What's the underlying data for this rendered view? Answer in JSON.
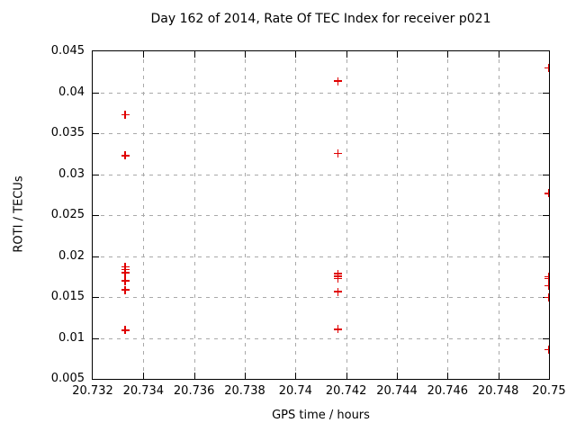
{
  "chart_data": {
    "type": "scatter",
    "title": "Day 162 of 2014, Rate Of TEC Index for receiver p021",
    "xlabel": "GPS time / hours",
    "ylabel": "ROTI / TECUs",
    "xlim": [
      20.732,
      20.75
    ],
    "ylim": [
      0.005,
      0.045
    ],
    "xticks": [
      20.732,
      20.734,
      20.736,
      20.738,
      20.74,
      20.742,
      20.744,
      20.746,
      20.748,
      20.75
    ],
    "xtick_labels": [
      "20.732",
      "20.734",
      "20.736",
      "20.738",
      "20.74",
      "20.742",
      "20.744",
      "20.746",
      "20.748",
      "20.75"
    ],
    "yticks": [
      0.005,
      0.01,
      0.015,
      0.02,
      0.025,
      0.03,
      0.035,
      0.04,
      0.045
    ],
    "ytick_labels": [
      "0.005",
      "0.01",
      "0.015",
      "0.02",
      "0.025",
      "0.03",
      "0.035",
      "0.04",
      "0.045"
    ],
    "grid": true,
    "legend": "none",
    "marker": {
      "style": "plus",
      "size": 9
    },
    "series": [
      {
        "name": "ROTI",
        "points": [
          [
            20.7333,
            0.0372
          ],
          [
            20.7333,
            0.0322
          ],
          [
            20.7333,
            0.0186
          ],
          [
            20.7333,
            0.0183
          ],
          [
            20.7333,
            0.0179
          ],
          [
            20.7333,
            0.0169
          ],
          [
            20.7333,
            0.0158
          ],
          [
            20.7333,
            0.0109
          ],
          [
            20.7417,
            0.0413
          ],
          [
            20.7417,
            0.0325
          ],
          [
            20.7417,
            0.0178
          ],
          [
            20.7417,
            0.0175
          ],
          [
            20.7417,
            0.0172
          ],
          [
            20.7417,
            0.0156
          ],
          [
            20.7417,
            0.011
          ],
          [
            20.75,
            0.0429
          ],
          [
            20.75,
            0.0276
          ],
          [
            20.75,
            0.0174
          ],
          [
            20.75,
            0.0172
          ],
          [
            20.75,
            0.0163
          ],
          [
            20.75,
            0.0149
          ],
          [
            20.75,
            0.0085
          ]
        ]
      }
    ]
  },
  "colors": {
    "marker": "#e00000",
    "grid": "#a9a9a9",
    "border": "#000000",
    "background": "#ffffff"
  }
}
